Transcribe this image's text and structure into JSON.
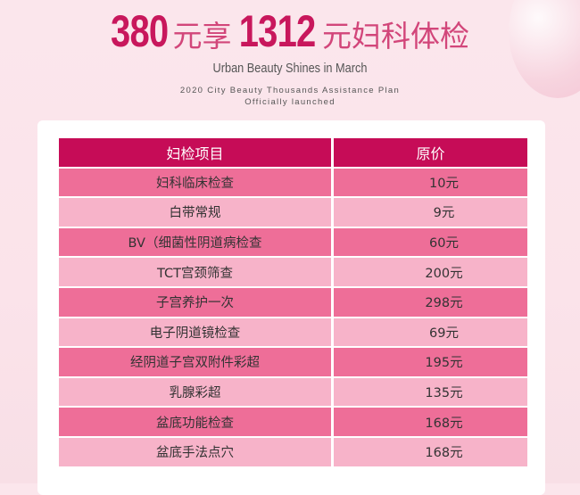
{
  "header": {
    "price1": "380",
    "text1": "元享",
    "price2": "1312",
    "text2": "元妇科体检",
    "subtitle": "Urban Beauty Shines in March",
    "tagline1": "2020 City Beauty Thousands Assistance Plan",
    "tagline2": "Officially launched"
  },
  "table": {
    "headers": [
      "妇检项目",
      "原价"
    ],
    "rows": [
      {
        "item": "妇科临床检查",
        "price": "10元"
      },
      {
        "item": "白带常规",
        "price": "9元"
      },
      {
        "item": "BV（细菌性阴道病检查",
        "price": "60元"
      },
      {
        "item": "TCT宫颈筛查",
        "price": "200元"
      },
      {
        "item": "子宫养护一次",
        "price": "298元"
      },
      {
        "item": "电子阴道镜检查",
        "price": "69元"
      },
      {
        "item": "经阴道子宫双附件彩超",
        "price": "195元"
      },
      {
        "item": "乳腺彩超",
        "price": "135元"
      },
      {
        "item": "盆底功能检查",
        "price": "168元"
      },
      {
        "item": "盆底手法点穴",
        "price": "168元"
      }
    ]
  },
  "colors": {
    "header": "#c60c57",
    "row_dark": "#ee6e98",
    "row_light": "#f7b3c9",
    "title": "#c8175c"
  }
}
